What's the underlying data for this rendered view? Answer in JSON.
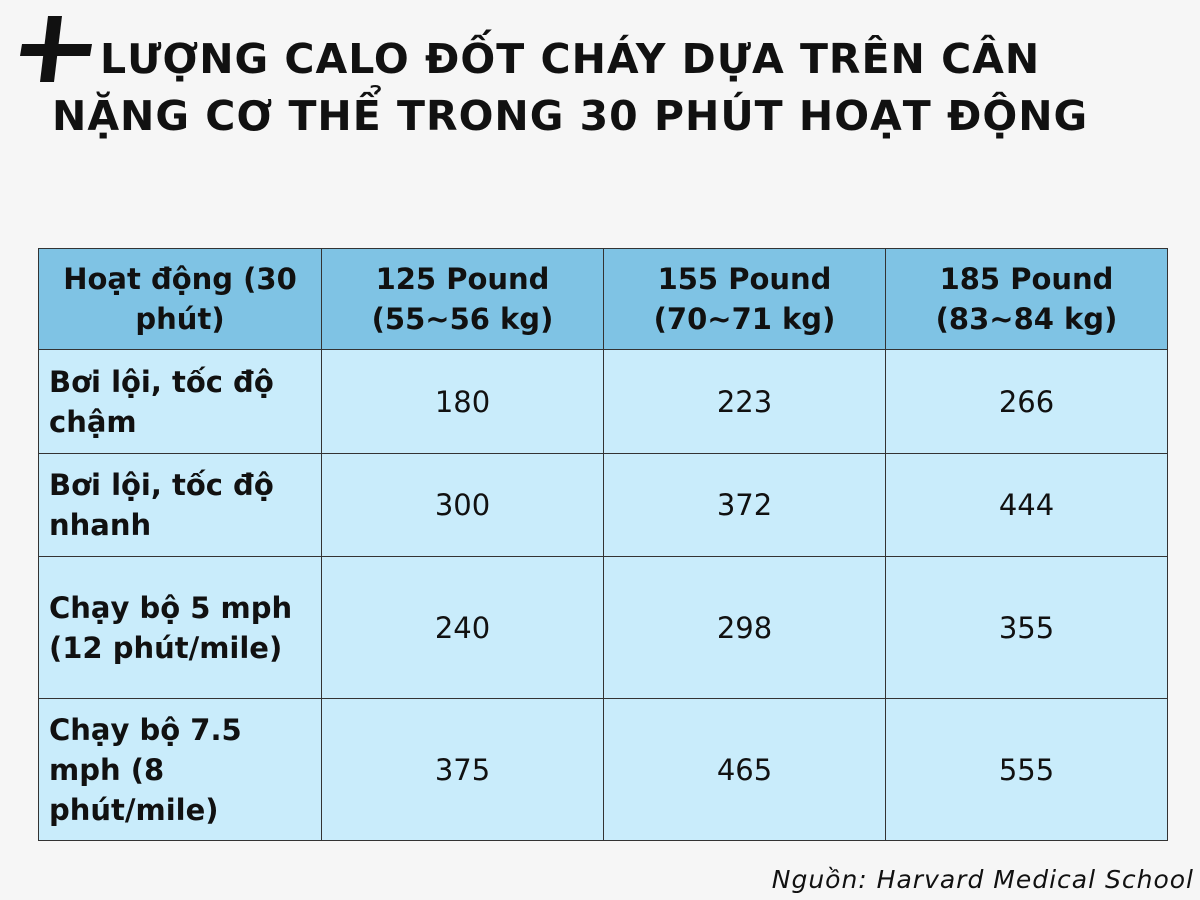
{
  "header": {
    "title_lines": [
      "LƯỢNG CALO ĐỐT CHÁY DỰA TRÊN CÂN",
      "NẶNG CƠ THỂ TRONG 30 PHÚT HOẠT ĐỘNG"
    ]
  },
  "table": {
    "columns": [
      "Hoạt động (30 phút)",
      "125 Pound (55~56 kg)",
      "155 Pound (70~71 kg)",
      "185 Pound (83~84 kg)"
    ],
    "rows": [
      [
        "Bơi lội, tốc độ chậm",
        180,
        223,
        266
      ],
      [
        "Bơi lội, tốc độ nhanh",
        300,
        372,
        444
      ],
      [
        "Chạy bộ 5 mph (12 phút/mile)",
        240,
        298,
        355
      ],
      [
        "Chạy bộ 7.5 mph (8 phút/mile)",
        375,
        465,
        555
      ]
    ]
  },
  "footer": {
    "source": "Nguồn: Harvard Medical School"
  }
}
